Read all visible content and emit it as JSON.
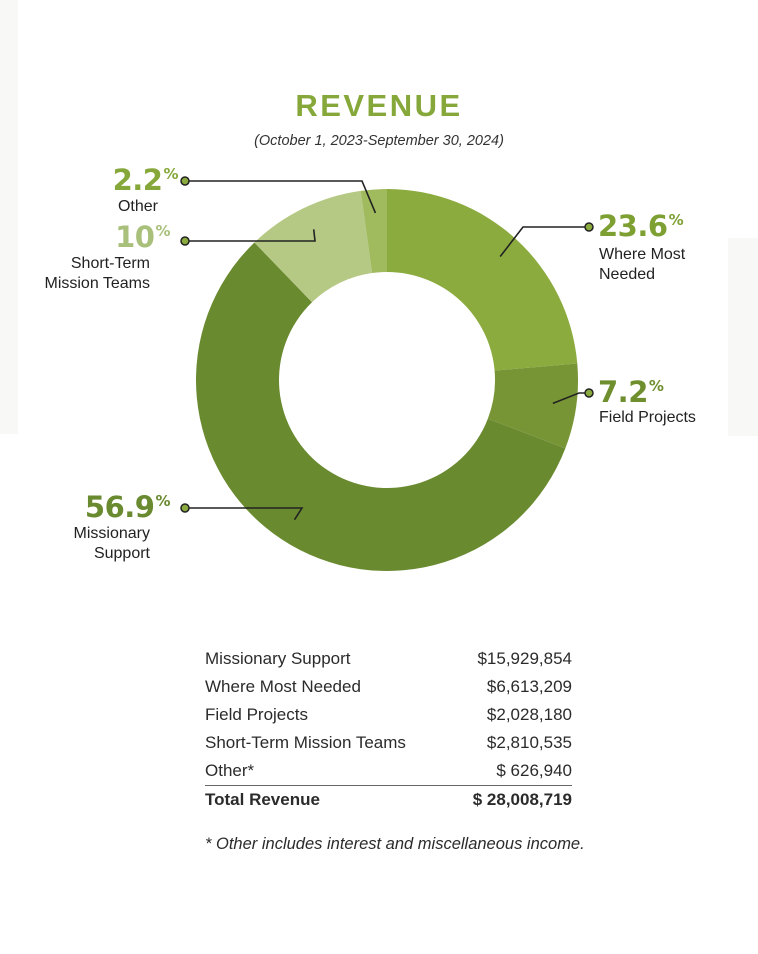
{
  "header": {
    "title": "REVENUE",
    "subtitle": "(October 1, 2023-September 30, 2024)"
  },
  "chart_data": {
    "type": "pie",
    "variant": "donut",
    "title": "REVENUE",
    "slices": [
      {
        "name": "Where Most Needed",
        "percent": 23.6,
        "pct_label": "23.6",
        "label_lines": [
          "Where Most",
          "Needed"
        ],
        "color": "#8cab3f",
        "pct_color": "#7ea032"
      },
      {
        "name": "Field Projects",
        "percent": 7.2,
        "pct_label": "7.2",
        "label_lines": [
          "Field Projects"
        ],
        "color": "#789536",
        "pct_color": "#6f8f2e"
      },
      {
        "name": "Missionary Support",
        "percent": 56.9,
        "pct_label": "56.9",
        "label_lines": [
          "Missionary",
          "Support"
        ],
        "color": "#6a8a30",
        "pct_color": "#6a8a30"
      },
      {
        "name": "Short-Term Mission Teams",
        "percent": 10,
        "pct_label": "10",
        "label_lines": [
          "Short-Term",
          "Mission Teams"
        ],
        "color": "#b5c984",
        "pct_color": "#a9c07a"
      },
      {
        "name": "Other",
        "percent": 2.2,
        "pct_label": "2.2",
        "label_lines": [
          "Other"
        ],
        "color": "#9fbb5e",
        "pct_color": "#86a83a"
      }
    ],
    "legend_placement": "callouts"
  },
  "table": {
    "rows": [
      {
        "label": "Missionary Support",
        "value": "$15,929,854"
      },
      {
        "label": "Where Most Needed",
        "value": "$6,613,209"
      },
      {
        "label": "Field Projects",
        "value": "$2,028,180"
      },
      {
        "label": "Short-Term Mission Teams",
        "value": "$2,810,535"
      },
      {
        "label": "Other*",
        "value": "$ 626,940"
      }
    ],
    "total": {
      "label": "Total Revenue",
      "value": "$ 28,008,719"
    }
  },
  "footnote": "* Other includes interest and miscellaneous income."
}
